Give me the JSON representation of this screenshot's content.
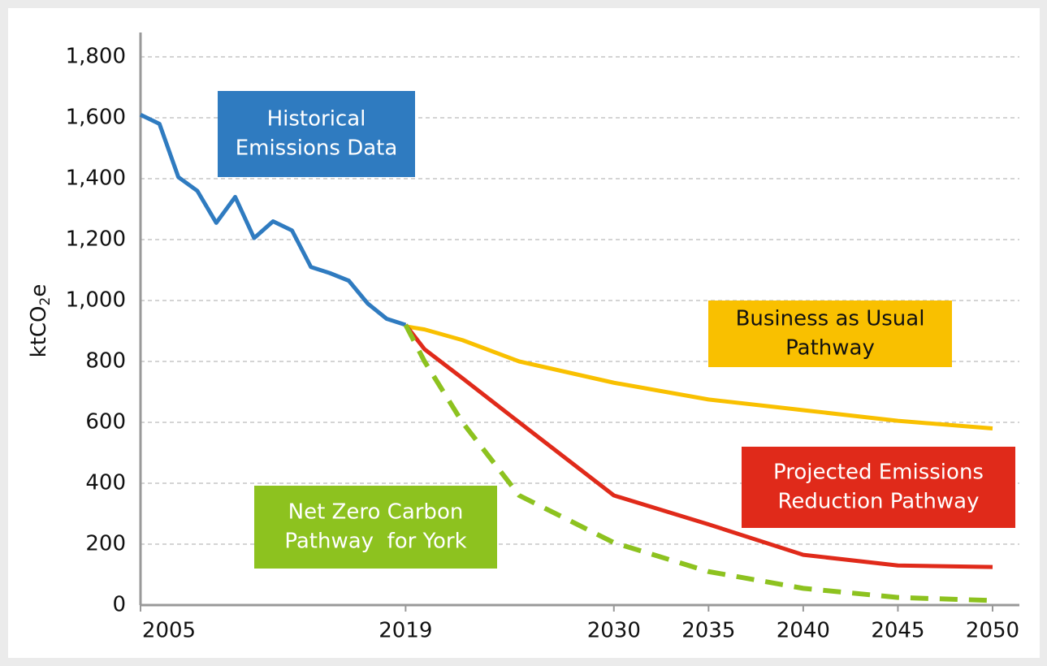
{
  "chart_data": {
    "type": "line",
    "ylabel": [
      "ktCO",
      "2",
      "e"
    ],
    "xlim": [
      2005,
      2050
    ],
    "xticks": [
      2005,
      2019,
      2030,
      2035,
      2040,
      2045,
      2050
    ],
    "ylim": [
      0,
      1880
    ],
    "yticks": [
      0,
      200,
      400,
      600,
      800,
      {
        "value": 1000,
        "label": "1,000"
      },
      {
        "value": 1200,
        "label": "1,200"
      },
      {
        "value": 1400,
        "label": "1,400"
      },
      {
        "value": 1600,
        "label": "1,600"
      },
      {
        "value": 1800,
        "label": "1,800"
      }
    ],
    "grid": true,
    "series": [
      {
        "name": [
          "Historical",
          "Emissions Data"
        ],
        "color": "#2f7bc0",
        "dashed": false,
        "x": [
          2005,
          2006,
          2007,
          2008,
          2009,
          2010,
          2011,
          2012,
          2013,
          2014,
          2015,
          2016,
          2017,
          2018,
          2019
        ],
        "values": [
          1610,
          1580,
          1405,
          1360,
          1255,
          1340,
          1205,
          1260,
          1230,
          1110,
          1090,
          1065,
          990,
          940,
          920
        ]
      },
      {
        "name": [
          "Business as Usual",
          "Pathway"
        ],
        "color": "#f9c000",
        "dashed": false,
        "x": [
          2019,
          2020,
          2022,
          2025,
          2030,
          2035,
          2040,
          2045,
          2050
        ],
        "values": [
          915,
          905,
          870,
          800,
          730,
          675,
          640,
          605,
          580
        ]
      },
      {
        "name": [
          "Projected Emissions",
          "Reduction Pathway"
        ],
        "color": "#e02a1a",
        "dashed": false,
        "x": [
          2019,
          2020,
          2022,
          2025,
          2030,
          2035,
          2040,
          2045,
          2050
        ],
        "values": [
          920,
          840,
          745,
          600,
          360,
          265,
          165,
          130,
          125
        ]
      },
      {
        "name": [
          "Net Zero Carbon",
          "Pathway  for York"
        ],
        "color": "#8dc21f",
        "dashed": true,
        "x": [
          2019,
          2020,
          2022,
          2025,
          2030,
          2035,
          2040,
          2045,
          2050
        ],
        "values": [
          920,
          800,
          600,
          360,
          205,
          110,
          55,
          25,
          15
        ]
      }
    ]
  }
}
